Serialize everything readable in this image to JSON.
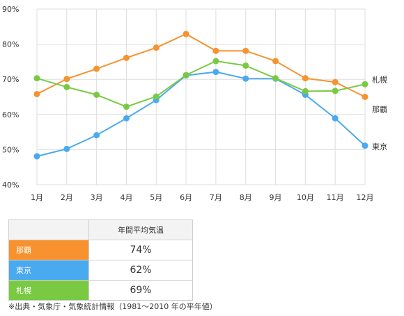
{
  "chart_data": {
    "type": "line",
    "categories": [
      "1月",
      "2月",
      "3月",
      "4月",
      "5月",
      "6月",
      "7月",
      "8月",
      "9月",
      "10月",
      "11月",
      "12月"
    ],
    "ylim": [
      40,
      90
    ],
    "yticks": [
      "40%",
      "50%",
      "60%",
      "70%",
      "80%",
      "90%"
    ],
    "ytick_values": [
      40,
      50,
      60,
      70,
      80,
      90
    ],
    "grid": true,
    "series": [
      {
        "name": "那覇",
        "color": "#f7922e",
        "values": [
          65.8,
          70.1,
          73.0,
          76.1,
          79.0,
          82.9,
          78.1,
          78.1,
          75.2,
          70.3,
          69.2,
          65.0
        ]
      },
      {
        "name": "東京",
        "color": "#4aaaf0",
        "values": [
          48.1,
          50.2,
          54.1,
          58.9,
          64.1,
          71.1,
          72.1,
          70.2,
          70.2,
          65.6,
          58.9,
          51.1
        ]
      },
      {
        "name": "札幌",
        "color": "#7ac943",
        "values": [
          70.3,
          67.8,
          65.6,
          62.2,
          65.1,
          71.2,
          75.2,
          73.9,
          70.3,
          66.6,
          66.7,
          68.6
        ]
      }
    ]
  },
  "summary": {
    "header": "年間平均気温",
    "rows": [
      {
        "name": "那覇",
        "value": "74%",
        "color": "#f7922e"
      },
      {
        "name": "東京",
        "value": "62%",
        "color": "#4aaaf0"
      },
      {
        "name": "札幌",
        "value": "69%",
        "color": "#7ac943"
      }
    ]
  },
  "footnote": "※出典・気象庁・気象統計情報（1981〜2010 年の平年値）"
}
